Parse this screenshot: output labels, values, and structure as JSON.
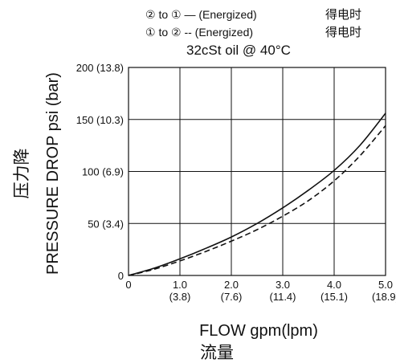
{
  "chart_data": {
    "type": "line",
    "subtitle": "32cSt oil @ 40°C",
    "legend": [
      {
        "label": "② to ① — (Energized)",
        "cn": "得电时",
        "style": "solid"
      },
      {
        "label": "① to ② -- (Energized)",
        "cn": "得电时",
        "style": "dashed"
      }
    ],
    "xlabel": "FLOW gpm(lpm)",
    "xlabel_cn": "流量",
    "ylabel": "PRESSURE DROP psi (bar)",
    "ylabel_cn": "压力降",
    "xlim": [
      0,
      5
    ],
    "ylim": [
      0,
      200
    ],
    "x_ticks": [
      {
        "value": 0,
        "label": "0",
        "sub": ""
      },
      {
        "value": 1,
        "label": "1.0",
        "sub": "(3.8)"
      },
      {
        "value": 2,
        "label": "2.0",
        "sub": "(7.6)"
      },
      {
        "value": 3,
        "label": "3.0",
        "sub": "(11.4)"
      },
      {
        "value": 4,
        "label": "4.0",
        "sub": "(15.1)"
      },
      {
        "value": 5,
        "label": "5.0",
        "sub": "(18.9)"
      }
    ],
    "y_ticks": [
      {
        "value": 0,
        "label": "0"
      },
      {
        "value": 50,
        "label": "50 (3.4)"
      },
      {
        "value": 100,
        "label": "100 (6.9)"
      },
      {
        "value": 150,
        "label": "150 (10.3)"
      },
      {
        "value": 200,
        "label": "200 (13.8)"
      }
    ],
    "grid": true,
    "series": [
      {
        "style": "solid",
        "x": [
          0,
          0.5,
          1,
          1.5,
          2,
          2.5,
          3,
          3.5,
          4,
          4.5,
          5
        ],
        "y": [
          0,
          7,
          16,
          26,
          37,
          50,
          65,
          82,
          101,
          125,
          156
        ]
      },
      {
        "style": "dashed",
        "x": [
          0,
          0.5,
          1,
          1.5,
          2,
          2.5,
          3,
          3.5,
          4,
          4.5,
          5
        ],
        "y": [
          0,
          6,
          14,
          23,
          33,
          44,
          57,
          72,
          91,
          115,
          144
        ]
      }
    ]
  },
  "colors": {
    "line": "#111111",
    "grid": "#111111",
    "background": "#ffffff"
  }
}
